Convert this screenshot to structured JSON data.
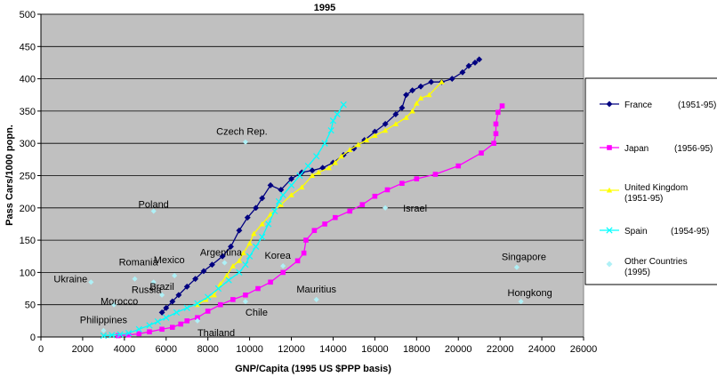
{
  "chart_data": {
    "type": "line",
    "title": "1995",
    "xlabel": "GNP/Capita (1995 US $PPP basis)",
    "ylabel": "Pass Cars/1000 popn.",
    "xlim": [
      0,
      26000
    ],
    "ylim": [
      0,
      500
    ],
    "xticks": [
      0,
      2000,
      4000,
      6000,
      8000,
      10000,
      12000,
      14000,
      16000,
      18000,
      20000,
      22000,
      24000,
      26000
    ],
    "yticks": [
      0,
      50,
      100,
      150,
      200,
      250,
      300,
      350,
      400,
      450,
      500
    ],
    "grid": "horizontal",
    "background": "#c0c0c0",
    "legend_position": "right",
    "series": [
      {
        "name": "France",
        "legend_years": "(1951-95)",
        "color": "#000080",
        "marker": "diamond",
        "points": [
          [
            5800,
            38
          ],
          [
            6000,
            45
          ],
          [
            6300,
            55
          ],
          [
            6600,
            65
          ],
          [
            7000,
            78
          ],
          [
            7400,
            90
          ],
          [
            7800,
            102
          ],
          [
            8200,
            112
          ],
          [
            8700,
            125
          ],
          [
            9100,
            140
          ],
          [
            9500,
            165
          ],
          [
            9900,
            185
          ],
          [
            10300,
            200
          ],
          [
            10600,
            215
          ],
          [
            11000,
            235
          ],
          [
            11500,
            228
          ],
          [
            12000,
            245
          ],
          [
            12500,
            255
          ],
          [
            13000,
            258
          ],
          [
            13500,
            262
          ],
          [
            14000,
            270
          ],
          [
            14500,
            282
          ],
          [
            15000,
            292
          ],
          [
            15500,
            305
          ],
          [
            16000,
            318
          ],
          [
            16500,
            330
          ],
          [
            17000,
            345
          ],
          [
            17300,
            355
          ],
          [
            17500,
            375
          ],
          [
            17800,
            382
          ],
          [
            18200,
            388
          ],
          [
            18700,
            395
          ],
          [
            19200,
            395
          ],
          [
            19700,
            400
          ],
          [
            20200,
            410
          ],
          [
            20500,
            420
          ],
          [
            20800,
            425
          ],
          [
            21000,
            430
          ]
        ]
      },
      {
        "name": "Japan",
        "legend_years": "(1956-95)",
        "color": "#ff00ff",
        "marker": "square",
        "points": [
          [
            3700,
            2
          ],
          [
            4200,
            3
          ],
          [
            4700,
            5
          ],
          [
            5200,
            8
          ],
          [
            5800,
            12
          ],
          [
            6300,
            15
          ],
          [
            6700,
            20
          ],
          [
            7000,
            25
          ],
          [
            7500,
            30
          ],
          [
            8000,
            40
          ],
          [
            8600,
            50
          ],
          [
            9200,
            58
          ],
          [
            9800,
            65
          ],
          [
            10400,
            75
          ],
          [
            11000,
            85
          ],
          [
            11600,
            100
          ],
          [
            12300,
            118
          ],
          [
            12600,
            130
          ],
          [
            12700,
            150
          ],
          [
            13100,
            165
          ],
          [
            13600,
            175
          ],
          [
            14100,
            185
          ],
          [
            14800,
            195
          ],
          [
            15400,
            205
          ],
          [
            16000,
            218
          ],
          [
            16600,
            228
          ],
          [
            17300,
            238
          ],
          [
            18000,
            245
          ],
          [
            18900,
            252
          ],
          [
            20000,
            265
          ],
          [
            21100,
            285
          ],
          [
            21700,
            300
          ],
          [
            21800,
            315
          ],
          [
            21800,
            330
          ],
          [
            21900,
            348
          ],
          [
            22100,
            358
          ]
        ]
      },
      {
        "name": "United Kingdom",
        "legend_years": "(1951-95)",
        "color": "#ffff00",
        "marker": "triangle",
        "points": [
          [
            7500,
            50
          ],
          [
            7900,
            58
          ],
          [
            8300,
            65
          ],
          [
            8600,
            82
          ],
          [
            8900,
            95
          ],
          [
            9200,
            110
          ],
          [
            9500,
            118
          ],
          [
            9700,
            130
          ],
          [
            10000,
            145
          ],
          [
            10200,
            160
          ],
          [
            10600,
            175
          ],
          [
            11000,
            190
          ],
          [
            11500,
            205
          ],
          [
            12000,
            220
          ],
          [
            12500,
            232
          ],
          [
            13000,
            250
          ],
          [
            13300,
            255
          ],
          [
            13800,
            262
          ],
          [
            14100,
            270
          ],
          [
            14400,
            280
          ],
          [
            14800,
            290
          ],
          [
            15200,
            298
          ],
          [
            15600,
            305
          ],
          [
            16000,
            312
          ],
          [
            16500,
            320
          ],
          [
            17000,
            330
          ],
          [
            17500,
            340
          ],
          [
            17800,
            350
          ],
          [
            18000,
            362
          ],
          [
            18200,
            370
          ],
          [
            18600,
            375
          ],
          [
            19200,
            395
          ]
        ]
      },
      {
        "name": "Spain",
        "legend_years": "(1954-95)",
        "color": "#00ffff",
        "marker": "x",
        "points": [
          [
            3000,
            2
          ],
          [
            3400,
            3
          ],
          [
            3800,
            4
          ],
          [
            4200,
            6
          ],
          [
            4700,
            12
          ],
          [
            5200,
            18
          ],
          [
            5600,
            24
          ],
          [
            6000,
            30
          ],
          [
            6500,
            38
          ],
          [
            7000,
            45
          ],
          [
            7500,
            52
          ],
          [
            8000,
            62
          ],
          [
            8500,
            75
          ],
          [
            9000,
            88
          ],
          [
            9500,
            100
          ],
          [
            9800,
            112
          ],
          [
            10000,
            125
          ],
          [
            10300,
            140
          ],
          [
            10600,
            155
          ],
          [
            10900,
            175
          ],
          [
            11200,
            195
          ],
          [
            11400,
            210
          ],
          [
            11600,
            220
          ],
          [
            12000,
            235
          ],
          [
            12400,
            250
          ],
          [
            12800,
            265
          ],
          [
            13200,
            280
          ],
          [
            13600,
            300
          ],
          [
            13900,
            320
          ],
          [
            14000,
            335
          ],
          [
            14200,
            345
          ],
          [
            14500,
            360
          ]
        ]
      }
    ],
    "other_countries": {
      "name": "Other Countries",
      "legend_years": "(1995)",
      "color": "#aef0f6",
      "marker": "diamond",
      "points": [
        {
          "label": "Ukraine",
          "x": 2400,
          "y": 85
        },
        {
          "label": "Romania",
          "x": 4500,
          "y": 90
        },
        {
          "label": "Mexico",
          "x": 6400,
          "y": 95
        },
        {
          "label": "Russia",
          "x": 5400,
          "y": 85
        },
        {
          "label": "Brazil",
          "x": 5800,
          "y": 65
        },
        {
          "label": "Morocco",
          "x": 3500,
          "y": 50
        },
        {
          "label": "Philippines",
          "x": 3000,
          "y": 10
        },
        {
          "label": "Thailand",
          "x": 7500,
          "y": 25
        },
        {
          "label": "Chile",
          "x": 9800,
          "y": 55
        },
        {
          "label": "Argentina",
          "x": 8800,
          "y": 115
        },
        {
          "label": "Poland",
          "x": 5400,
          "y": 195
        },
        {
          "label": "Czech Rep.",
          "x": 9800,
          "y": 302
        },
        {
          "label": "Korea",
          "x": 11600,
          "y": 110
        },
        {
          "label": "Mauritius",
          "x": 13200,
          "y": 58
        },
        {
          "label": "Israel",
          "x": 16500,
          "y": 200
        },
        {
          "label": "Singapore",
          "x": 22800,
          "y": 108
        },
        {
          "label": "Hongkong",
          "x": 23000,
          "y": 55
        }
      ]
    }
  }
}
